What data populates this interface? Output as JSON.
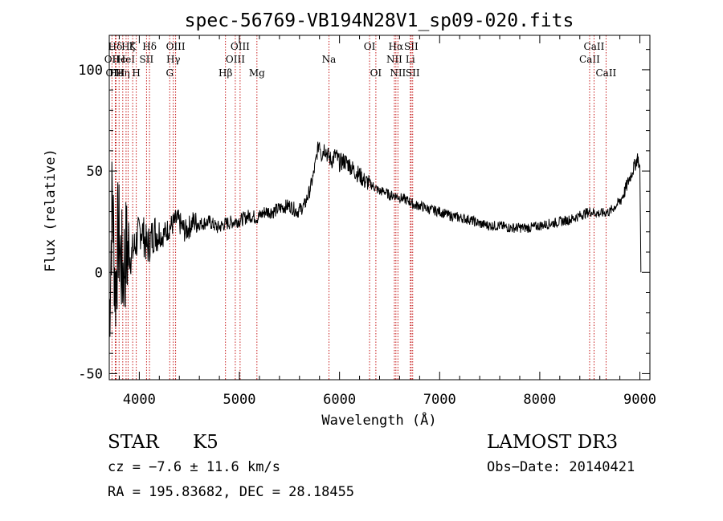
{
  "chart_data": {
    "type": "line",
    "title": "spec-56769-VB194N28V1_sp09-020.fits",
    "xlabel": "Wavelength (Å)",
    "ylabel": "Flux (relative)",
    "xlim": [
      3700,
      9100
    ],
    "ylim": [
      -53,
      117
    ],
    "xticks": [
      4000,
      5000,
      6000,
      7000,
      8000,
      9000
    ],
    "xtick_labels": [
      "4000",
      "5000",
      "6000",
      "7000",
      "8000",
      "9000"
    ],
    "yticks": [
      -50,
      0,
      50,
      100
    ],
    "ytick_labels": [
      "-50",
      "0",
      "50",
      "100"
    ],
    "grid": false,
    "line_color": "#000000",
    "marker_line_color": "#c00000",
    "series": [
      {
        "x": [
          3700,
          3730,
          3760,
          3790,
          3830,
          3870,
          3920,
          3970,
          4020,
          4080,
          4150,
          4230,
          4300,
          4380,
          4460,
          4540,
          4620,
          4700,
          4780,
          4860,
          4940,
          5020,
          5100,
          5180,
          5260,
          5340,
          5420,
          5500,
          5580,
          5650,
          5700,
          5740,
          5780,
          5800,
          5820,
          5850,
          5880,
          5920,
          5960,
          6000,
          6050,
          6100,
          6150,
          6200,
          6250,
          6300,
          6350,
          6400,
          6450,
          6500,
          6550,
          6600,
          6650,
          6700,
          6750,
          6800,
          6900,
          7000,
          7100,
          7200,
          7300,
          7400,
          7500,
          7600,
          7700,
          7800,
          7900,
          8000,
          8100,
          8200,
          8300,
          8400,
          8500,
          8600,
          8700,
          8800,
          8850,
          8900,
          8950,
          8980,
          9000,
          9010
        ],
        "y": [
          -25,
          40,
          -10,
          20,
          0,
          10,
          8,
          15,
          22,
          12,
          20,
          18,
          22,
          26,
          20,
          25,
          24,
          25,
          22,
          24,
          25,
          26,
          28,
          27,
          30,
          30,
          32,
          33,
          30,
          33,
          40,
          48,
          60,
          65,
          58,
          62,
          58,
          55,
          58,
          54,
          55,
          53,
          50,
          48,
          45,
          44,
          42,
          40,
          40,
          38,
          38,
          37,
          36,
          35,
          33,
          33,
          31,
          30,
          28,
          27,
          26,
          24,
          23,
          23,
          22,
          22,
          22,
          23,
          24,
          25,
          26,
          28,
          30,
          29,
          30,
          35,
          40,
          47,
          53,
          57,
          50,
          0
        ]
      }
    ],
    "line_markers": [
      {
        "x": 3727,
        "label": "OII",
        "row": 1
      },
      {
        "x": 3760,
        "label": "Hδ",
        "row": 0
      },
      {
        "x": 3760,
        "label": "OIII",
        "row": 2
      },
      {
        "x": 3770,
        "label": "Hϵ",
        "row": 2
      },
      {
        "x": 3798,
        "label": "Hϵ",
        "row": 1
      },
      {
        "x": 3835,
        "label": "Hη",
        "row": 2
      },
      {
        "x": 3868,
        "label": "HeI",
        "row": 1
      },
      {
        "x": 3889,
        "label": "Hζ",
        "row": 0
      },
      {
        "x": 3934,
        "label": "K",
        "row": 0
      },
      {
        "x": 3970,
        "label": "H",
        "row": 2
      },
      {
        "x": 4072,
        "label": "SII",
        "row": 1
      },
      {
        "x": 4102,
        "label": "Hδ",
        "row": 0
      },
      {
        "x": 4304,
        "label": "G",
        "row": 2
      },
      {
        "x": 4340,
        "label": "Hγ",
        "row": 1
      },
      {
        "x": 4363,
        "label": "OIII",
        "row": 0
      },
      {
        "x": 4861,
        "label": "Hβ",
        "row": 2
      },
      {
        "x": 4959,
        "label": "OIII",
        "row": 1
      },
      {
        "x": 5007,
        "label": "OIII",
        "row": 0
      },
      {
        "x": 5175,
        "label": "Mg",
        "row": 2
      },
      {
        "x": 5894,
        "label": "Na",
        "row": 1
      },
      {
        "x": 6300,
        "label": "OI",
        "row": 0
      },
      {
        "x": 6363,
        "label": "OI",
        "row": 2
      },
      {
        "x": 6548,
        "label": "NII",
        "row": 1
      },
      {
        "x": 6563,
        "label": "Hα",
        "row": 0
      },
      {
        "x": 6583,
        "label": "NII",
        "row": 2
      },
      {
        "x": 6707,
        "label": "Li",
        "row": 1
      },
      {
        "x": 6716,
        "label": "SII",
        "row": 0
      },
      {
        "x": 6731,
        "label": "SII",
        "row": 2
      },
      {
        "x": 8498,
        "label": "CaII",
        "row": 1
      },
      {
        "x": 8542,
        "label": "CaII",
        "row": 0
      },
      {
        "x": 8662,
        "label": "CaII",
        "row": 2
      }
    ]
  },
  "info": {
    "class": "STAR",
    "subclass": "K5",
    "cz": "cz = −7.6 ± 11.6 km/s",
    "radec": "RA = 195.83682, DEC =  28.18455",
    "survey": "LAMOST DR3",
    "obsdate": "Obs−Date: 20140421"
  }
}
